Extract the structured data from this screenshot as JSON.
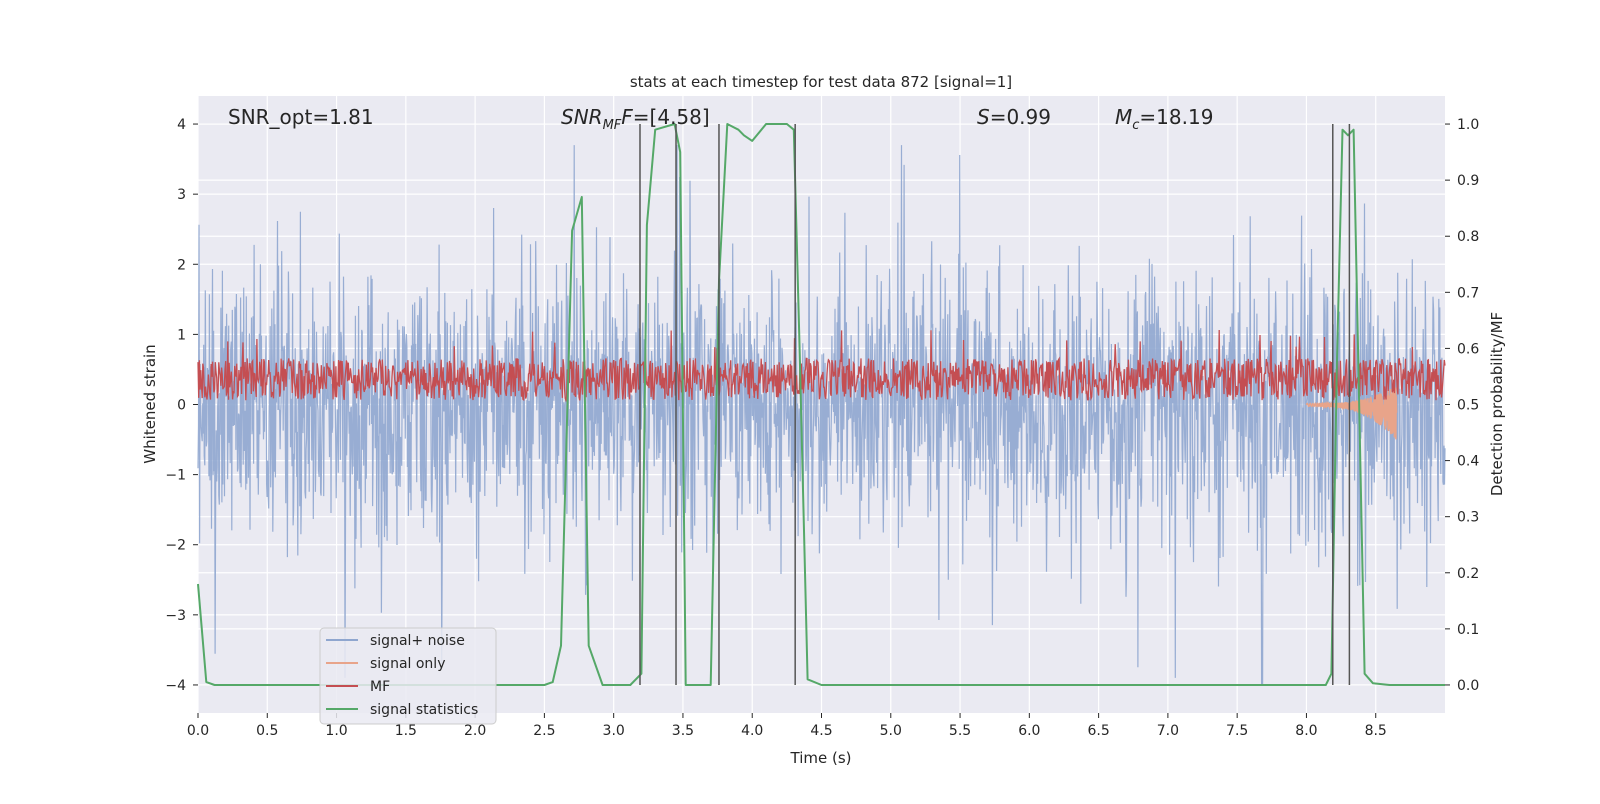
{
  "chart_data": {
    "type": "line",
    "title": "stats at each timestep for test data 872 [signal=1]",
    "xlabel": "Time (s)",
    "ylabel_left": "Whitened strain",
    "ylabel_right": "Detection probability/MF",
    "xlim": [
      0.0,
      9.0
    ],
    "ylim_left": [
      -4.4,
      4.4
    ],
    "ylim_right": [
      -0.05,
      1.05
    ],
    "xticks": [
      "0.0",
      "0.5",
      "1.0",
      "1.5",
      "2.0",
      "2.5",
      "3.0",
      "3.5",
      "4.0",
      "4.5",
      "5.0",
      "5.5",
      "6.0",
      "6.5",
      "7.0",
      "7.5",
      "8.0",
      "8.5"
    ],
    "xtick_values": [
      0.0,
      0.5,
      1.0,
      1.5,
      2.0,
      2.5,
      3.0,
      3.5,
      4.0,
      4.5,
      5.0,
      5.5,
      6.0,
      6.5,
      7.0,
      7.5,
      8.0,
      8.5
    ],
    "yticks_left": [
      "−4",
      "−3",
      "−2",
      "−1",
      "0",
      "1",
      "2",
      "3",
      "4"
    ],
    "ytick_values_left": [
      -4,
      -3,
      -2,
      -1,
      0,
      1,
      2,
      3,
      4
    ],
    "yticks_right": [
      "0.0",
      "0.1",
      "0.2",
      "0.3",
      "0.4",
      "0.5",
      "0.6",
      "0.7",
      "0.8",
      "0.9",
      "1.0"
    ],
    "ytick_values_right": [
      0.0,
      0.1,
      0.2,
      0.3,
      0.4,
      0.5,
      0.6,
      0.7,
      0.8,
      0.9,
      1.0
    ],
    "grid": true,
    "legend_position": "lower-left",
    "annotations": {
      "snr_opt": "SNR_opt=1.81",
      "snr_mf_main": "SNR",
      "snr_mf_sub": "MF",
      "snr_mf_rest": "=[4.58]",
      "s_main": "S",
      "s_rest": "=0.99",
      "mc_main": "M",
      "mc_sub": "c",
      "mc_rest": "=18.19"
    },
    "series": [
      {
        "name": "signal+ noise",
        "color": "#8fa6cf",
        "axis": "left",
        "style": "dense noisy strain, amplitude envelope about ±1.5 with spikes up to ±3.7 and down to −4.0 near t=7.68"
      },
      {
        "name": "signal only",
        "color": "#e8a48a",
        "axis": "left",
        "style": "chirp visible from about t=8.0 to 8.65, amplitude growing to about 0.4",
        "t_start": 8.0,
        "t_end": 8.65
      },
      {
        "name": "MF",
        "color": "#c44e52",
        "axis": "right",
        "style": "noisy band between about 0.51 and 0.59 with spikes up to 0.63"
      },
      {
        "name": "signal statistics",
        "color": "#55a868",
        "axis": "right",
        "x": [
          0.0,
          0.06,
          0.12,
          0.5,
          1.0,
          1.5,
          2.0,
          2.5,
          2.56,
          2.62,
          2.7,
          2.77,
          2.82,
          2.92,
          3.0,
          3.06,
          3.12,
          3.2,
          3.24,
          3.3,
          3.44,
          3.48,
          3.52,
          3.63,
          3.7,
          3.76,
          3.82,
          3.9,
          3.94,
          4.0,
          4.1,
          4.15,
          4.25,
          4.3,
          4.34,
          4.4,
          4.5,
          5.0,
          6.0,
          7.0,
          8.0,
          8.14,
          8.18,
          8.22,
          8.26,
          8.3,
          8.34,
          8.42,
          8.48,
          8.6,
          9.0
        ],
        "y": [
          0.18,
          0.005,
          0.0,
          0.0,
          0.0,
          0.0,
          0.0,
          0.0,
          0.005,
          0.07,
          0.81,
          0.87,
          0.07,
          0.0,
          0.0,
          0.0,
          0.0,
          0.02,
          0.82,
          0.99,
          1.0,
          0.95,
          0.0,
          0.0,
          0.0,
          0.72,
          1.0,
          0.99,
          0.98,
          0.97,
          1.0,
          1.0,
          1.0,
          0.99,
          0.62,
          0.01,
          0.0,
          0.0,
          0.0,
          0.0,
          0.0,
          0.0,
          0.02,
          0.57,
          0.99,
          0.98,
          0.99,
          0.02,
          0.003,
          0.0,
          0.0
        ]
      }
    ],
    "event_markers": {
      "color": "#555555",
      "x": [
        3.19,
        3.45,
        3.76,
        4.31,
        8.19,
        8.31
      ],
      "ylim_left": [
        -4.0,
        4.0
      ]
    }
  }
}
